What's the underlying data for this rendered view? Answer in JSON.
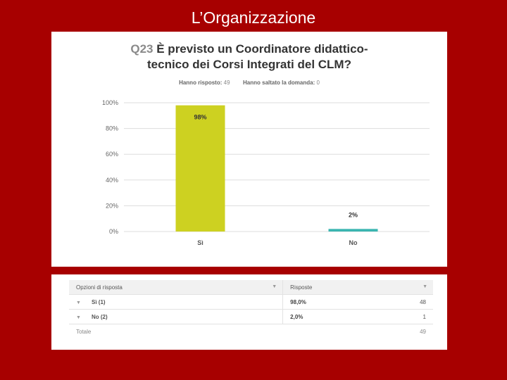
{
  "slide_title": "L’Organizzazione",
  "question": {
    "number": "Q23",
    "text_line1": "È previsto un Coordinatore didattico-",
    "text_line2": "tecnico dei Corsi Integrati del CLM?",
    "answered_label": "Hanno risposto:",
    "answered_value": "49",
    "skipped_label": "Hanno saltato la domanda:",
    "skipped_value": "0"
  },
  "chart_data": {
    "type": "bar",
    "categories": [
      "Sì",
      "No"
    ],
    "values": [
      98,
      2
    ],
    "data_labels": [
      "98%",
      "2%"
    ],
    "colors": [
      "#cdd121",
      "#3ab5b0"
    ],
    "yticks": [
      "100%",
      "80%",
      "60%",
      "40%",
      "20%",
      "0%"
    ],
    "ylim": [
      0,
      100
    ],
    "grid": true
  },
  "table": {
    "col_option": "Opzioni di risposta",
    "col_responses": "Risposte",
    "rows": [
      {
        "option": "Sì (1)",
        "percent": "98,0%",
        "count": "48"
      },
      {
        "option": "No (2)",
        "percent": "2,0%",
        "count": "1"
      }
    ],
    "total_label": "Totale",
    "total_value": "49"
  }
}
